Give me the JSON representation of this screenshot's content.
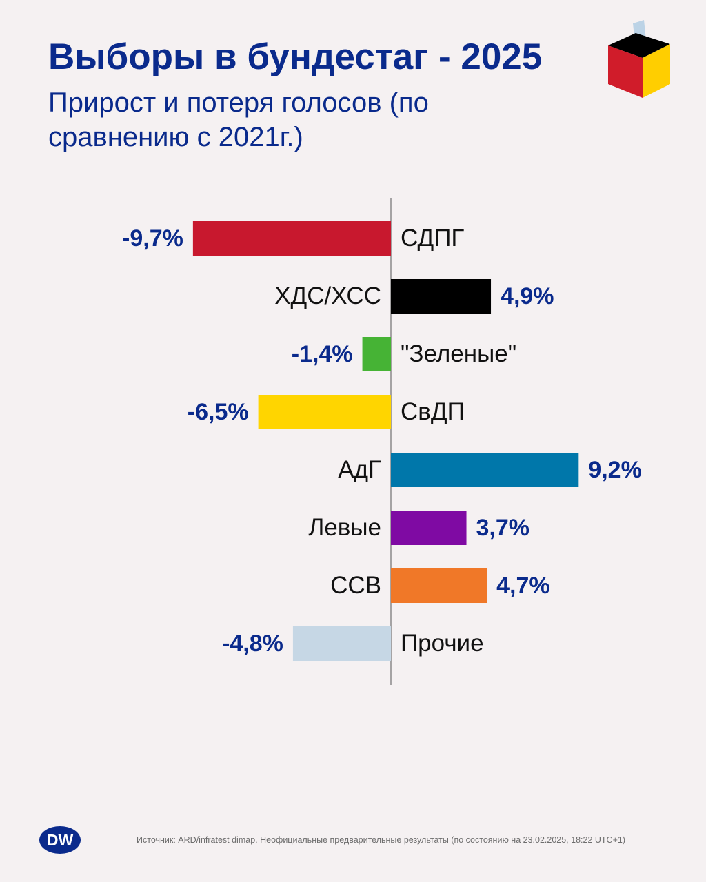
{
  "header": {
    "title": "Выборы в бундестаг - 2025",
    "subtitle": "Прирост и потеря голосов (по сравнению с 2021г.)"
  },
  "footer": {
    "logo_text": "DW",
    "source": "Источник: ARD/infratest dimap. Неофициальные предварительные результаты (по состоянию на 23.02.2025, 18:22 UTC+1)"
  },
  "logo_colors": [
    "#000000",
    "#d01c2a",
    "#ffce00"
  ],
  "chart_data": {
    "type": "bar",
    "orientation": "horizontal-diverging",
    "title": "Выборы в бундестаг - 2025",
    "subtitle": "Прирост и потеря голосов (по сравнению с 2021г.)",
    "categories": [
      "СДПГ",
      "ХДС/ХСС",
      "\"Зеленые\"",
      "СвДП",
      "АдГ",
      "Левые",
      "ССВ",
      "Прочие"
    ],
    "values": [
      -9.7,
      4.9,
      -1.4,
      -6.5,
      9.2,
      3.7,
      4.7,
      -4.8
    ],
    "value_labels": [
      "-9,7%",
      "4,9%",
      "-1,4%",
      "-6,5%",
      "9,2%",
      "3,7%",
      "4,7%",
      "-4,8%"
    ],
    "colors": [
      "#c8182e",
      "#000000",
      "#46b335",
      "#ffd500",
      "#0077aa",
      "#7f0aa3",
      "#f07828",
      "#c6d7e5"
    ],
    "unit": "%",
    "grid": false,
    "legend": "none"
  }
}
